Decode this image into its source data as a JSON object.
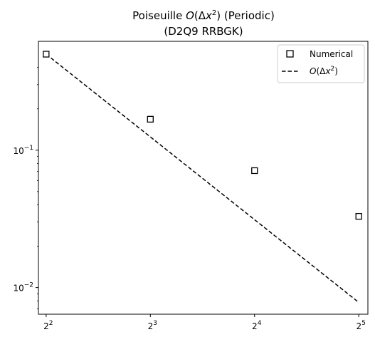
{
  "chart_data": {
    "type": "scatter",
    "title": {
      "line1_prefix": "Poiseuille ",
      "line1_math_O": "O",
      "line1_math_open": "(Δ",
      "line1_math_x": "x",
      "line1_math_exp": "2",
      "line1_math_close": ")",
      "line1_suffix": " (Periodic)",
      "line2": "(D2Q9 RRBGK)"
    },
    "xlabel": "",
    "ylabel": "",
    "x_scale": "log2",
    "y_scale": "log10",
    "xlim": [
      3.8,
      34
    ],
    "ylim": [
      0.0064,
      0.62
    ],
    "x_ticks": [
      {
        "value": 4,
        "base": "2",
        "exp": "2"
      },
      {
        "value": 8,
        "base": "2",
        "exp": "3"
      },
      {
        "value": 16,
        "base": "2",
        "exp": "4"
      },
      {
        "value": 32,
        "base": "2",
        "exp": "5"
      }
    ],
    "y_ticks": [
      {
        "value": 0.1,
        "base": "10",
        "exp": "−1"
      },
      {
        "value": 0.01,
        "base": "10",
        "exp": "−2"
      }
    ],
    "y_minor_ticks": [
      0.4,
      0.3,
      0.2,
      0.09,
      0.08,
      0.07,
      0.06,
      0.05,
      0.04,
      0.03,
      0.02,
      0.009,
      0.008,
      0.007
    ],
    "grid": false,
    "legend_position": "top-right",
    "series": [
      {
        "name": "Numerical",
        "style": "square-marker",
        "color": "#000000",
        "x": [
          4,
          8,
          16,
          32
        ],
        "y": [
          0.5,
          0.168,
          0.071,
          0.033
        ]
      },
      {
        "style": "dashed-line",
        "color": "#000000",
        "x": [
          4,
          32
        ],
        "y": [
          0.5,
          0.0078
        ]
      }
    ],
    "legend": [
      {
        "label": "Numerical",
        "kind": "square-marker"
      },
      {
        "label_math_O": "O",
        "label_math_open": "(Δ",
        "label_math_x": "x",
        "label_math_exp": "2",
        "label_math_close": ")",
        "kind": "dashed-line"
      }
    ]
  }
}
